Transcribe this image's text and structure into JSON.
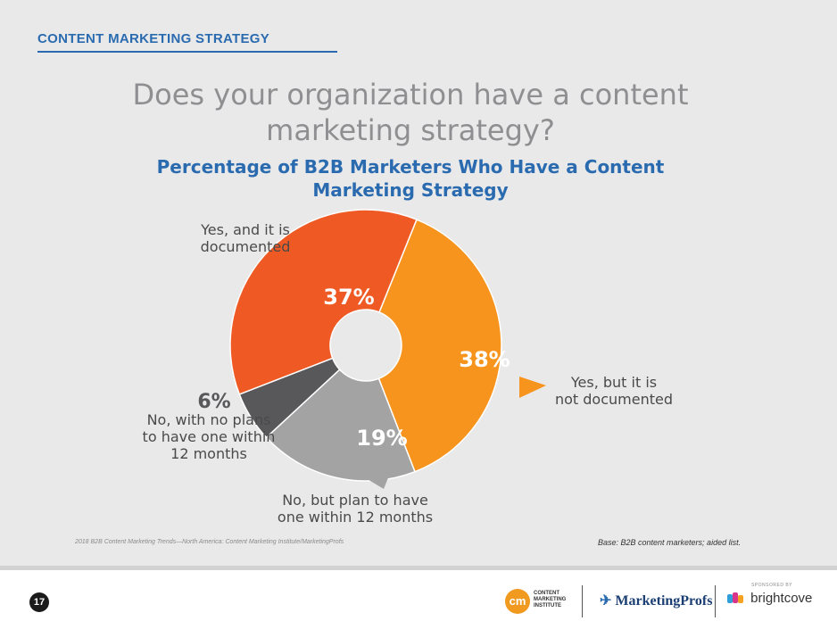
{
  "header": {
    "section_label": "CONTENT MARKETING STRATEGY",
    "question": "Does your organization have a content marketing strategy?"
  },
  "chart_data": {
    "type": "pie",
    "donut": true,
    "title": "Percentage of B2B Marketers Who Have a Content Marketing Strategy",
    "slices": [
      {
        "label": "Yes, and it is documented",
        "value": 37,
        "display": "37%",
        "color": "#ef5a24"
      },
      {
        "label": "Yes, but it is not documented",
        "value": 38,
        "display": "38%",
        "color": "#f7941d"
      },
      {
        "label": "No, but plan to have one within 12 months",
        "value": 19,
        "display": "19%",
        "color": "#a3a3a4"
      },
      {
        "label": "No, with no plans to have one within 12 months",
        "value": 6,
        "display": "6%",
        "color": "#58585a"
      }
    ]
  },
  "footer": {
    "source": "2018 B2B Content Marketing Trends—North America: Content Marketing Institute/MarketingProfs",
    "base": "Base: B2B content marketers; aided list.",
    "page_number": "17",
    "cmi_mark": "cm",
    "cmi_text": "CONTENT MARKETING INSTITUTE",
    "mp_bird": "✈",
    "mp_name": "MarketingProfs",
    "sponsored_by": "SPONSORED BY",
    "bc_name": "brightcove"
  },
  "colors": {
    "accent_blue": "#2a6bb0",
    "slide_bg": "#e9e9ea"
  }
}
